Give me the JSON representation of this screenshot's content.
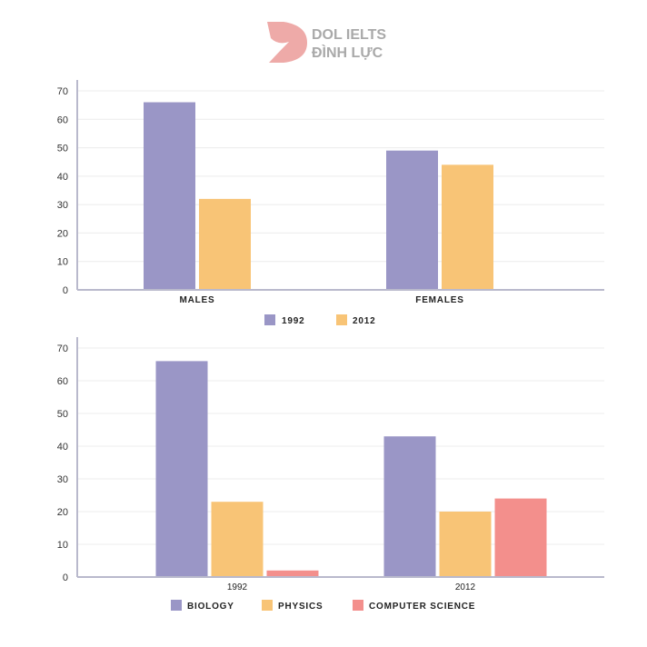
{
  "logo": {
    "line1": "DOL IELTS",
    "line2": "ĐÌNH LỰC"
  },
  "chart_data": [
    {
      "type": "bar",
      "title": "",
      "xlabel": "",
      "ylabel": "",
      "categories": [
        "MALES",
        "FEMALES"
      ],
      "series": [
        {
          "name": "1992",
          "color": "#9a96c6",
          "values": [
            66,
            49
          ]
        },
        {
          "name": "2012",
          "color": "#f8c476",
          "values": [
            32,
            44
          ]
        }
      ],
      "ylim": [
        0,
        70
      ],
      "yticks": [
        0,
        10,
        20,
        30,
        40,
        50,
        60,
        70
      ],
      "grid": true,
      "legend": "bottom-center"
    },
    {
      "type": "bar",
      "title": "",
      "xlabel": "",
      "ylabel": "",
      "categories": [
        "1992",
        "2012"
      ],
      "series": [
        {
          "name": "BIOLOGY",
          "color": "#9a96c6",
          "values": [
            66,
            43
          ]
        },
        {
          "name": "PHYSICS",
          "color": "#f8c476",
          "values": [
            23,
            20
          ]
        },
        {
          "name": "COMPUTER SCIENCE",
          "color": "#f38f8c",
          "values": [
            2,
            24
          ]
        }
      ],
      "ylim": [
        0,
        70
      ],
      "yticks": [
        0,
        10,
        20,
        30,
        40,
        50,
        60,
        70
      ],
      "grid": true,
      "legend": "bottom-center"
    }
  ]
}
